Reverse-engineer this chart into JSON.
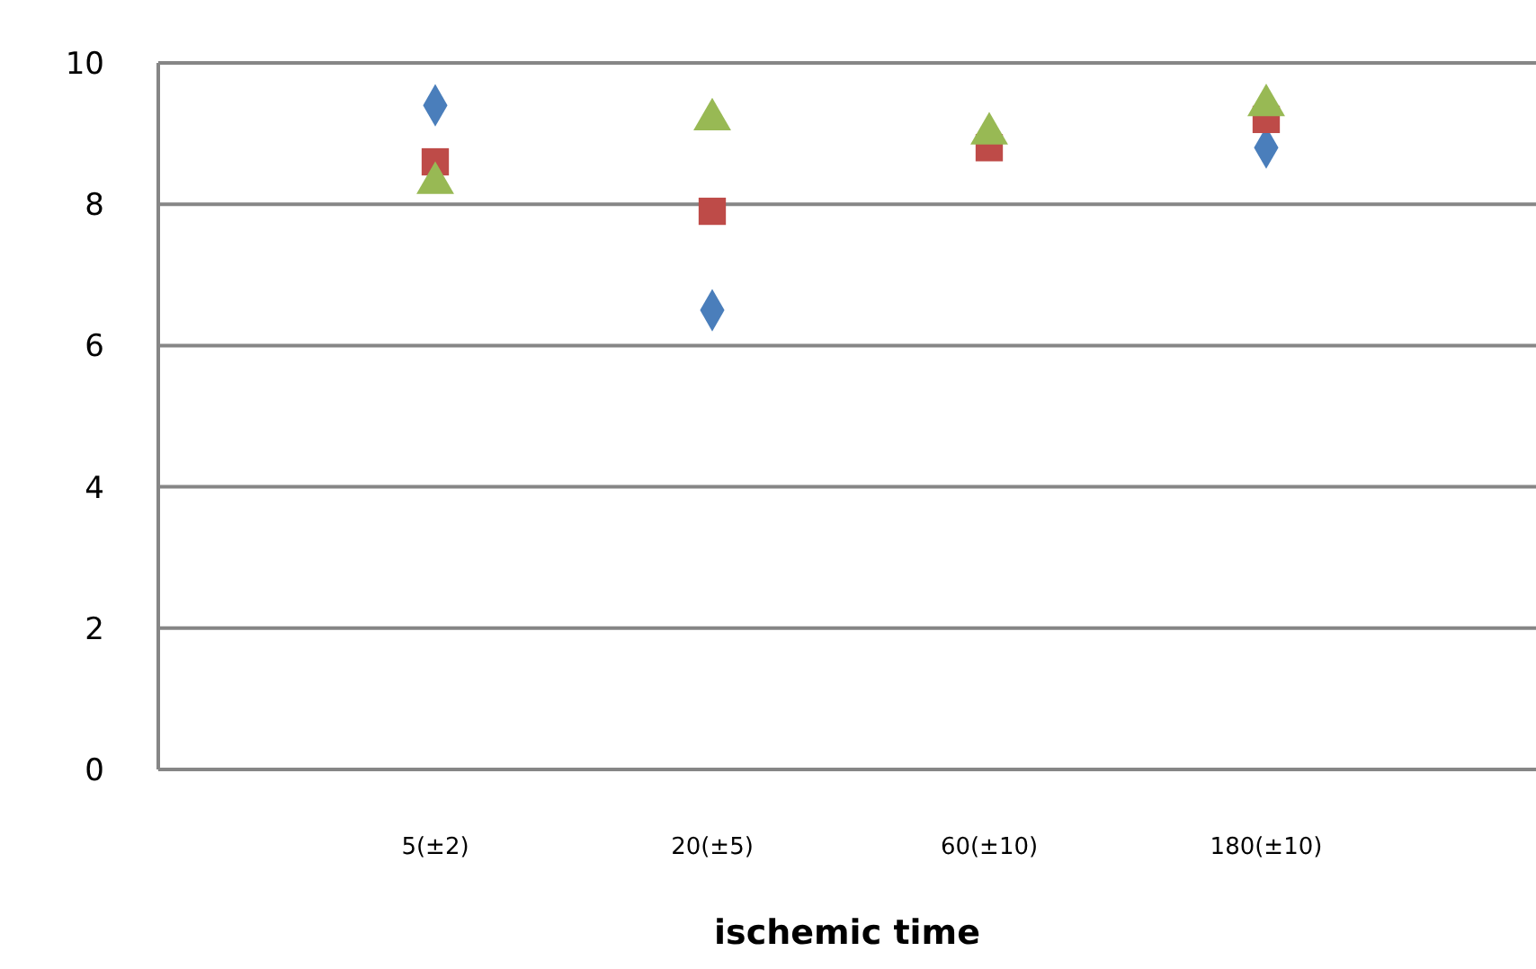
{
  "chart_data": {
    "type": "scatter",
    "xlabel": "ischemic time",
    "categories": [
      null,
      "5(±2)",
      "20(±5)",
      "60(±10)",
      "180(±10)",
      null
    ],
    "series": [
      {
        "color": "#4a7ebb",
        "marker": "diamond",
        "values": [
          null,
          9.4,
          6.5,
          null,
          8.8,
          null
        ]
      },
      {
        "color": "#be4b48",
        "marker": "square",
        "values": [
          null,
          8.6,
          7.9,
          8.8,
          9.2,
          null
        ]
      },
      {
        "color": "#98b954",
        "marker": "triangle",
        "values": [
          null,
          8.3,
          9.2,
          9.0,
          9.4,
          null
        ]
      }
    ],
    "ylim": [
      0,
      10
    ],
    "yticks": [
      0,
      2,
      4,
      6,
      8,
      10
    ],
    "grid": "y"
  }
}
